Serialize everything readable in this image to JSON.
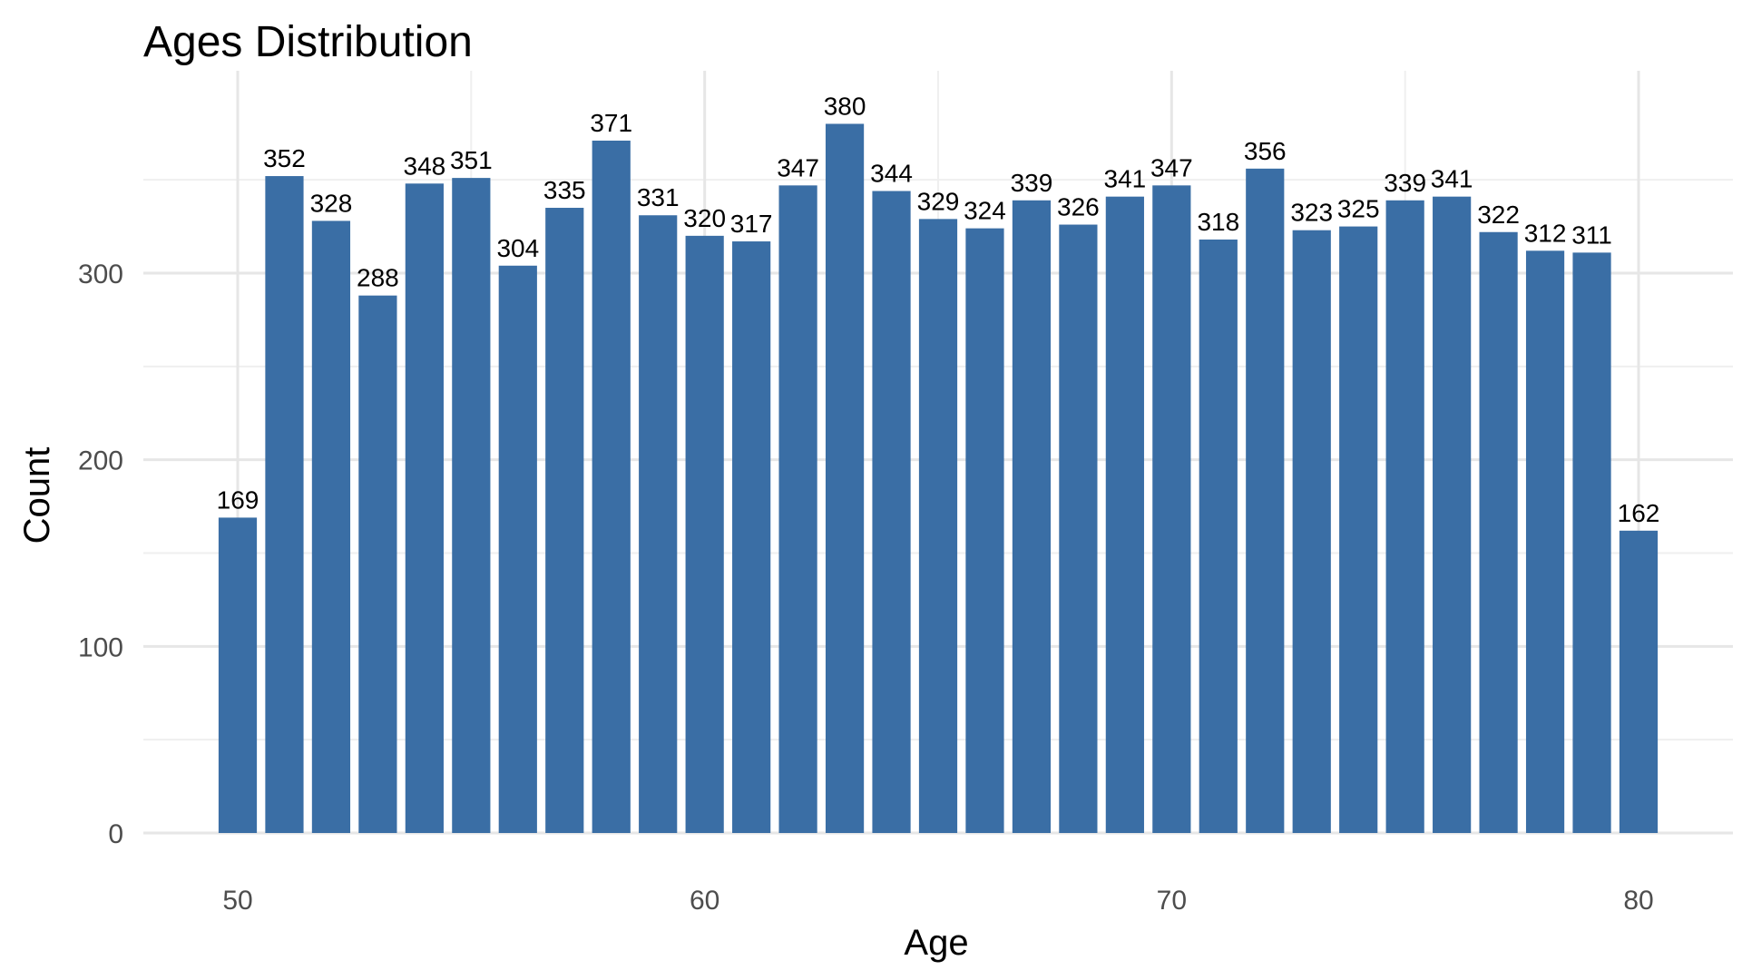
{
  "chart_data": {
    "type": "bar",
    "title": "Ages Distribution",
    "xlabel": "Age",
    "ylabel": "Count",
    "x": [
      50,
      51,
      52,
      53,
      54,
      55,
      56,
      57,
      58,
      59,
      60,
      61,
      62,
      63,
      64,
      65,
      66,
      67,
      68,
      69,
      70,
      71,
      72,
      73,
      74,
      75,
      76,
      77,
      78,
      79,
      80
    ],
    "values": [
      169,
      352,
      328,
      288,
      348,
      351,
      304,
      335,
      371,
      331,
      320,
      317,
      347,
      380,
      344,
      329,
      324,
      339,
      326,
      341,
      347,
      318,
      356,
      323,
      325,
      339,
      341,
      322,
      312,
      311,
      162
    ],
    "xlim": [
      48,
      82
    ],
    "ylim": [
      0,
      400
    ],
    "x_ticks": [
      50,
      60,
      70,
      80
    ],
    "y_ticks": [
      0,
      100,
      200,
      300
    ],
    "grid": true,
    "bar_color": "#3a6ea5",
    "show_value_labels": true
  }
}
